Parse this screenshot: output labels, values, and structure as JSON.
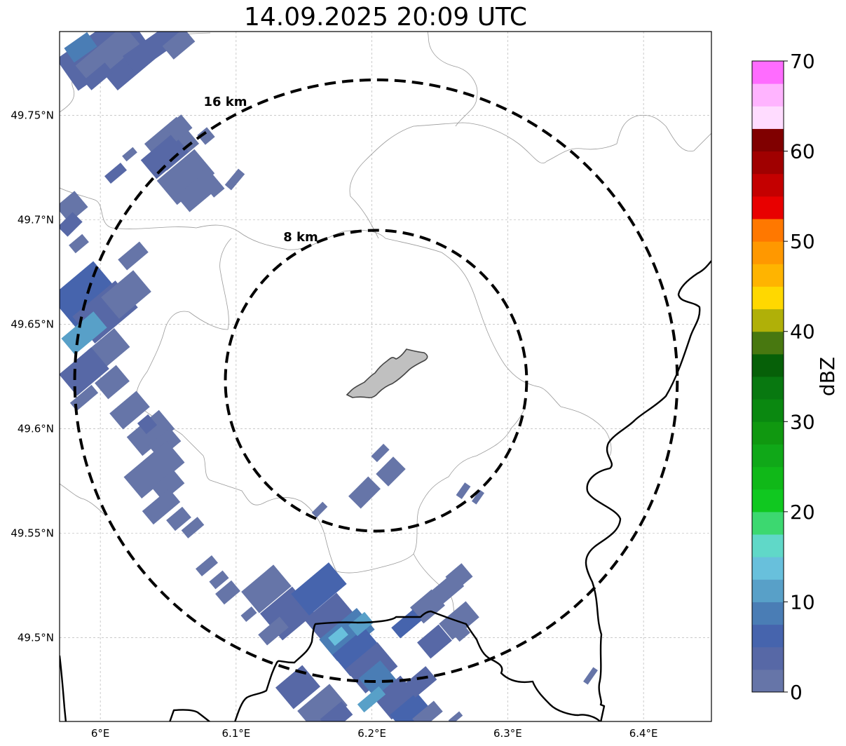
{
  "title": "14.09.2025 20:09 UTC",
  "map": {
    "lon_range": [
      5.97,
      6.45
    ],
    "lat_range": [
      49.46,
      49.79
    ],
    "lon_ticks": [
      {
        "value": 6.0,
        "label": "6°E"
      },
      {
        "value": 6.1,
        "label": "6.1°E"
      },
      {
        "value": 6.2,
        "label": "6.2°E"
      },
      {
        "value": 6.3,
        "label": "6.3°E"
      },
      {
        "value": 6.4,
        "label": "6.4°E"
      }
    ],
    "lat_ticks": [
      {
        "value": 49.5,
        "label": "49.5°N"
      },
      {
        "value": 49.55,
        "label": "49.55°N"
      },
      {
        "value": 49.6,
        "label": "49.6°N"
      },
      {
        "value": 49.65,
        "label": "49.65°N"
      },
      {
        "value": 49.7,
        "label": "49.7°N"
      },
      {
        "value": 49.75,
        "label": "49.75°N"
      }
    ],
    "center": {
      "lon": 6.203,
      "lat": 49.623
    },
    "rings": [
      {
        "radius_km": 8,
        "label": "8 km"
      },
      {
        "radius_km": 16,
        "label": "16 km"
      }
    ],
    "gridlines": true,
    "city_fill": "#c0c0c0"
  },
  "colorbar": {
    "label": "dBZ",
    "min": 0,
    "max": 70,
    "step": 2.5,
    "ticks": [
      0,
      10,
      20,
      30,
      40,
      50,
      60,
      70
    ],
    "colors": [
      "#6675a8",
      "#5768a6",
      "#4664ad",
      "#4a7db5",
      "#58a0c8",
      "#68c0dc",
      "#60d8c8",
      "#3cd870",
      "#10c820",
      "#10b818",
      "#10a818",
      "#109810",
      "#0a8810",
      "#087810",
      "#066008",
      "#487810",
      "#b0b008",
      "#ffd800",
      "#ffb400",
      "#ff9800",
      "#ff7800",
      "#e80000",
      "#c40000",
      "#a00000",
      "#800000",
      "#ffdcff",
      "#ffb4ff",
      "#ff6cff",
      "#f028f0"
    ]
  }
}
